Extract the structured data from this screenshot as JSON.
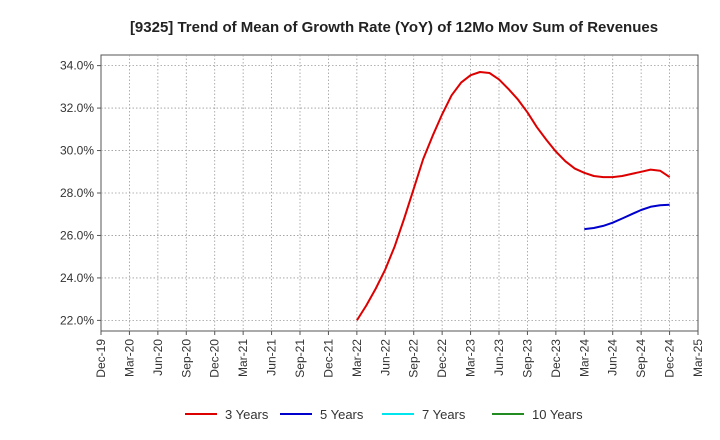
{
  "chart_data": {
    "type": "line",
    "title": "[9325]  Trend of Mean of Growth Rate (YoY) of 12Mo Mov Sum of Revenues",
    "xlabel": "",
    "ylabel": "",
    "x_ticks": [
      "Dec-19",
      "Mar-20",
      "Jun-20",
      "Sep-20",
      "Dec-20",
      "Mar-21",
      "Jun-21",
      "Sep-21",
      "Dec-21",
      "Mar-22",
      "Jun-22",
      "Sep-22",
      "Dec-22",
      "Mar-23",
      "Jun-23",
      "Sep-23",
      "Dec-23",
      "Mar-24",
      "Jun-24",
      "Sep-24",
      "Dec-24",
      "Mar-25"
    ],
    "y_ticks": [
      "22.0%",
      "24.0%",
      "26.0%",
      "28.0%",
      "30.0%",
      "32.0%",
      "34.0%"
    ],
    "ylim": [
      21.5,
      34.5
    ],
    "grid": true,
    "legend_position": "bottom",
    "series": [
      {
        "name": "3 Years",
        "color": "#dd0000",
        "x": [
          "Mar-22",
          "Apr-22",
          "May-22",
          "Jun-22",
          "Jul-22",
          "Aug-22",
          "Sep-22",
          "Oct-22",
          "Nov-22",
          "Dec-22",
          "Jan-23",
          "Feb-23",
          "Mar-23",
          "Apr-23",
          "May-23",
          "Jun-23",
          "Jul-23",
          "Aug-23",
          "Sep-23",
          "Oct-23",
          "Nov-23",
          "Dec-23",
          "Jan-24",
          "Feb-24",
          "Mar-24",
          "Apr-24",
          "May-24",
          "Jun-24",
          "Jul-24",
          "Aug-24",
          "Sep-24",
          "Oct-24",
          "Nov-24",
          "Dec-24"
        ],
        "values": [
          22.0,
          22.7,
          23.5,
          24.4,
          25.5,
          26.8,
          28.2,
          29.6,
          30.7,
          31.7,
          32.6,
          33.2,
          33.55,
          33.7,
          33.65,
          33.35,
          32.9,
          32.4,
          31.8,
          31.1,
          30.5,
          29.95,
          29.5,
          29.15,
          28.95,
          28.8,
          28.75,
          28.75,
          28.8,
          28.9,
          29.0,
          29.1,
          29.05,
          28.75
        ]
      },
      {
        "name": "5 Years",
        "color": "#0000cc",
        "x": [
          "Mar-24",
          "Apr-24",
          "May-24",
          "Jun-24",
          "Jul-24",
          "Aug-24",
          "Sep-24",
          "Oct-24",
          "Nov-24",
          "Dec-24"
        ],
        "values": [
          26.3,
          26.35,
          26.45,
          26.6,
          26.8,
          27.0,
          27.2,
          27.35,
          27.42,
          27.45
        ]
      },
      {
        "name": "7 Years",
        "color": "#00e5ee",
        "x": [],
        "values": []
      },
      {
        "name": "10 Years",
        "color": "#228b22",
        "x": [],
        "values": []
      }
    ]
  }
}
